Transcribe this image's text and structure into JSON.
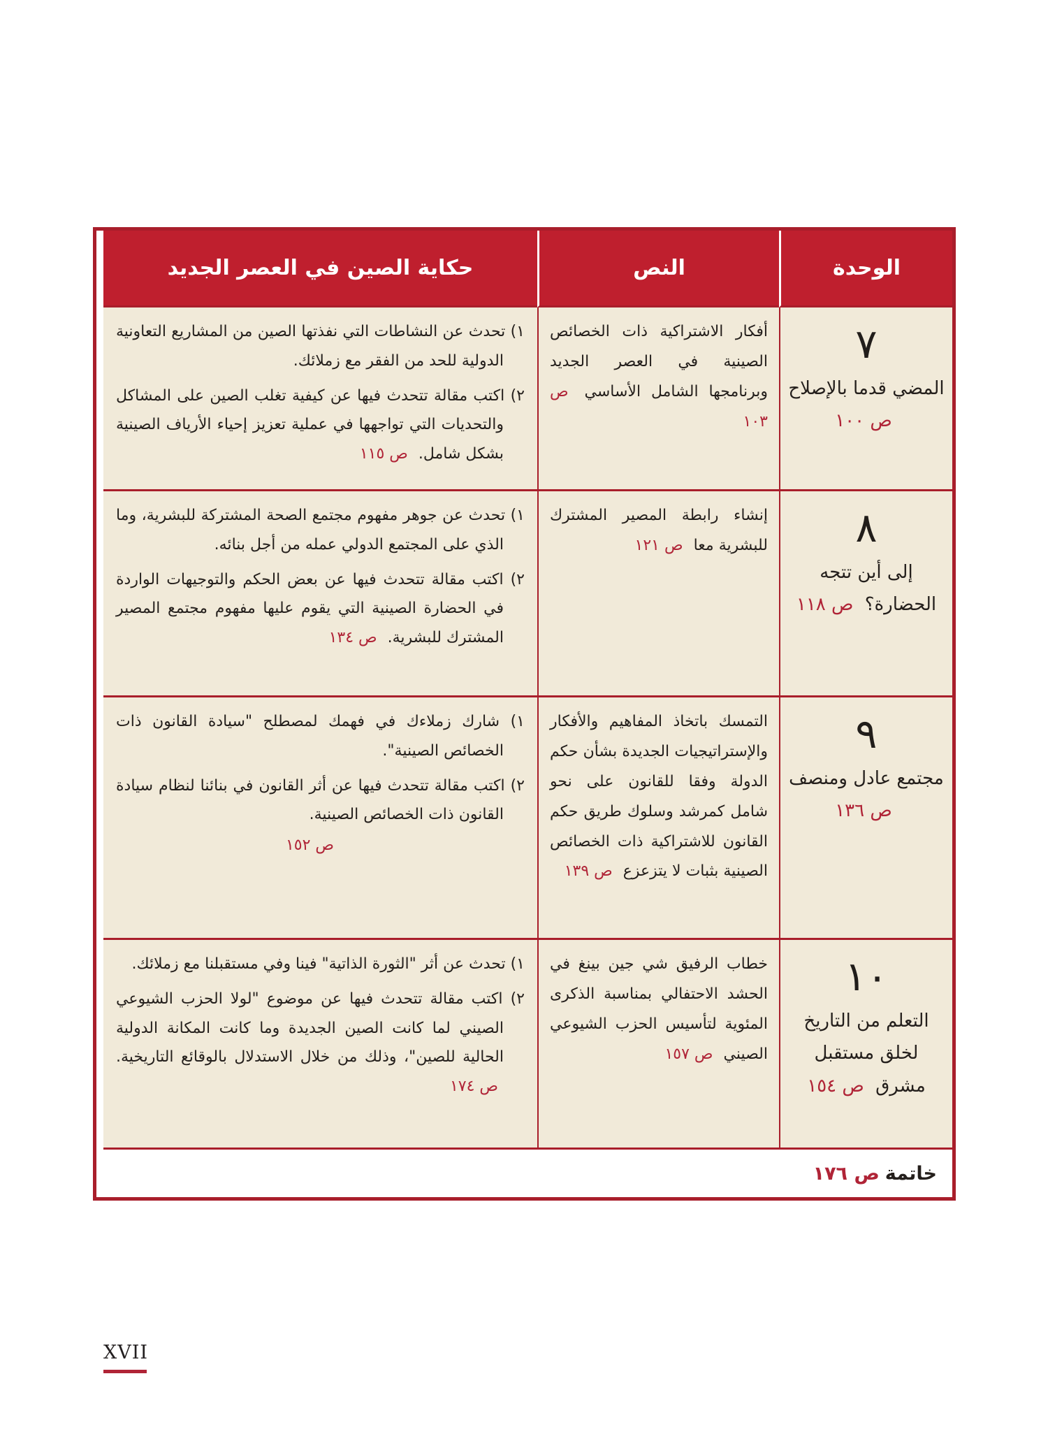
{
  "page": {
    "number_label": "XVII"
  },
  "colors": {
    "header_bg": "#bf1f2e",
    "table_border": "#a91e2b",
    "cell_bg": "#f1ead9",
    "page_ref_red": "#b02437"
  },
  "table": {
    "headers": {
      "unit": "الوحدة",
      "text": "النص",
      "story": "حكاية الصين في العصر الجديد"
    },
    "rows": [
      {
        "unit": {
          "number": "٧",
          "title": "المضي قدما بالإصلاح",
          "page": "ص ١٠٠"
        },
        "text": {
          "body": "أفكار الاشتراكية ذات الخصائص الصينية في العصر الجديد وبرنامجها الشامل الأساسي",
          "page": "ص ١٠٣"
        },
        "story": [
          {
            "body": "١) تحدث عن النشاطات التي نفذتها الصين من المشاريع التعاونية الدولية للحد من الفقر مع زملائك.",
            "page": ""
          },
          {
            "body": "٢) اكتب مقالة تتحدث فيها عن كيفية تغلب الصين على المشاكل والتحديات التي تواجهها في عملية تعزيز إحياء الأرياف الصينية بشكل شامل.",
            "page": "ص ١١٥"
          }
        ]
      },
      {
        "unit": {
          "number": "٨",
          "title": "إلى أين تتجه الحضارة؟",
          "page": "ص ١١٨"
        },
        "text": {
          "body": "إنشاء رابطة المصير المشترك للبشرية معا",
          "page": "ص ١٢١"
        },
        "story": [
          {
            "body": "١) تحدث عن جوهر مفهوم مجتمع الصحة المشتركة للبشرية، وما الذي على المجتمع الدولي عمله من أجل بنائه.",
            "page": ""
          },
          {
            "body": "٢) اكتب مقالة تتحدث فيها عن بعض الحكم والتوجيهات الواردة في الحضارة الصينية التي يقوم عليها مفهوم مجتمع المصير المشترك للبشرية.",
            "page": "ص ١٣٤"
          }
        ]
      },
      {
        "unit": {
          "number": "٩",
          "title": "مجتمع عادل ومنصف",
          "page": "ص ١٣٦"
        },
        "text": {
          "body": "التمسك باتخاذ المفاهيم والأفكار والإستراتيجيات الجديدة بشأن حكم الدولة وفقا للقانون على نحو شامل كمرشد وسلوك طريق حكم القانون للاشتراكية ذات الخصائص الصينية بثبات لا يتزعزع",
          "page": "ص ١٣٩"
        },
        "story": [
          {
            "body": "١) شارك زملاءك في فهمك لمصطلح \"سيادة القانون ذات الخصائص الصينية\".",
            "page": ""
          },
          {
            "body": "٢) اكتب مقالة تتحدث فيها عن أثر القانون في بنائنا لنظام سيادة القانون ذات الخصائص الصينية.",
            "page": "ص ١٥٢"
          }
        ]
      },
      {
        "unit": {
          "number": "١٠",
          "title": "التعلم من التاريخ لخلق مستقبل مشرق",
          "page": "ص ١٥٤"
        },
        "text": {
          "body": "خطاب الرفيق شي جين بينغ في الحشد الاحتفالي بمناسبة الذكرى المئوية لتأسيس الحزب الشيوعي الصيني",
          "page": "ص ١٥٧"
        },
        "story": [
          {
            "body": "١) تحدث عن أثر \"الثورة الذاتية\" فينا وفي مستقبلنا مع زملائك.",
            "page": ""
          },
          {
            "body": "٢) اكتب مقالة تتحدث فيها عن موضوع \"لولا الحزب الشيوعي الصيني لما كانت الصين الجديدة وما كانت المكانة الدولية الحالية للصين\"، وذلك من خلال الاستدلال بالوقائع التاريخية.",
            "page": "ص ١٧٤"
          }
        ]
      }
    ],
    "footer": {
      "label": "خاتمة",
      "page": "ص ١٧٦"
    }
  }
}
